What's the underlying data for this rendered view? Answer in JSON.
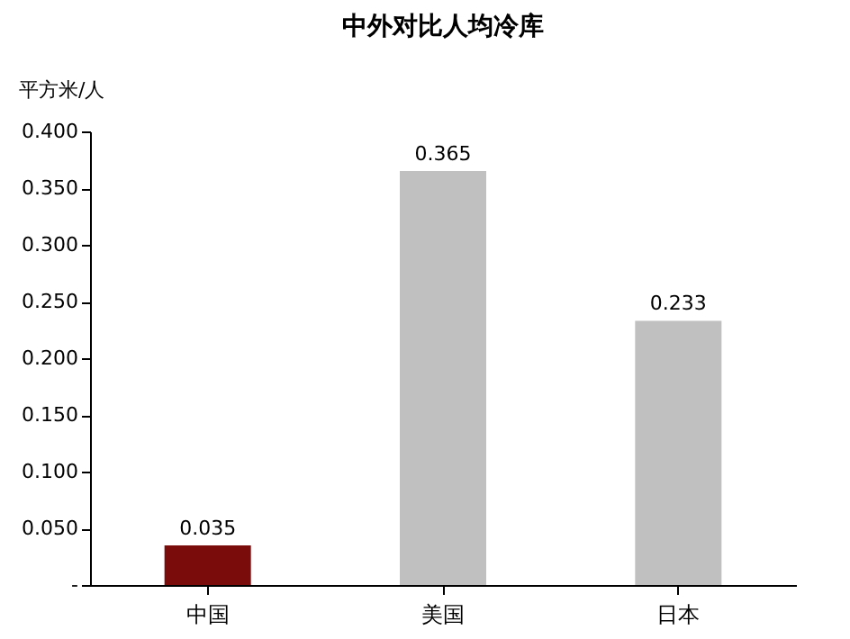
{
  "chart_data": {
    "type": "bar",
    "title": "中外对比人均冷库",
    "ylabel": "平方米/人",
    "categories": [
      "中国",
      "美国",
      "日本"
    ],
    "values": [
      0.035,
      0.365,
      0.233
    ],
    "colors": [
      "#7b0c0c",
      "#c0c0c0",
      "#c0c0c0"
    ],
    "ylim": [
      0,
      0.4
    ],
    "yticks": [
      {
        "value": 0,
        "label": "-"
      },
      {
        "value": 0.05,
        "label": "0.050"
      },
      {
        "value": 0.1,
        "label": "0.100"
      },
      {
        "value": 0.15,
        "label": "0.150"
      },
      {
        "value": 0.2,
        "label": "0.200"
      },
      {
        "value": 0.25,
        "label": "0.250"
      },
      {
        "value": 0.3,
        "label": "0.300"
      },
      {
        "value": 0.35,
        "label": "0.350"
      },
      {
        "value": 0.4,
        "label": "0.400"
      }
    ],
    "value_labels": [
      "0.035",
      "0.365",
      "0.233"
    ],
    "grid": false
  }
}
